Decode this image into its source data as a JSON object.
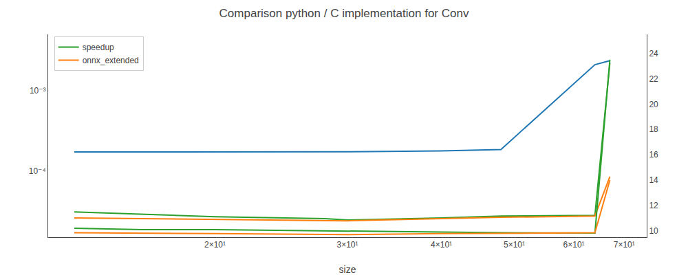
{
  "chart_data": {
    "type": "line",
    "title": "Comparison python / C implementation for Conv",
    "xlabel": "size",
    "x": [
      13,
      16,
      20,
      28,
      30,
      40,
      48,
      64,
      67
    ],
    "series": [
      {
        "color": "#1f77b4",
        "values": [
          0.000172,
          0.000172,
          0.000172,
          0.000172,
          0.000173,
          0.000178,
          0.000185,
          0.0021,
          0.00235
        ]
      },
      {
        "name": "speedup",
        "color": "#2ca02c",
        "values": [
          3.1e-05,
          2.9e-05,
          2.7e-05,
          2.55e-05,
          2.45e-05,
          2.6e-05,
          2.75e-05,
          2.8e-05,
          0.0022
        ]
      },
      {
        "name": "onnx_extended",
        "color": "#ff7f0e",
        "values": [
          2.6e-05,
          2.55e-05,
          2.5e-05,
          2.4e-05,
          2.4e-05,
          2.55e-05,
          2.65e-05,
          2.75e-05,
          8.5e-05
        ]
      },
      {
        "color": "#2ca02c",
        "axis": "y2",
        "values": [
          10.2,
          10.1,
          10.1,
          10.0,
          9.95,
          9.9,
          9.85,
          9.82,
          23.5
        ]
      },
      {
        "color": "#ff7f0e",
        "axis": "y2",
        "values": [
          9.85,
          9.8,
          9.78,
          9.72,
          9.7,
          9.78,
          9.82,
          9.85,
          14.0
        ]
      }
    ],
    "log": true,
    "xlim": [
      12,
      75
    ],
    "xticks": [
      {
        "value": 20,
        "label": "2×10¹"
      },
      {
        "value": 30,
        "label": "3×10¹"
      },
      {
        "value": 40,
        "label": "4×10¹"
      },
      {
        "value": 50,
        "label": "5×10¹"
      },
      {
        "value": 60,
        "label": "6×10¹"
      },
      {
        "value": 70,
        "label": "7×10¹"
      }
    ],
    "ylim": [
      1.5e-05,
      0.005
    ],
    "yticks": [
      {
        "value": 0.0001,
        "label": "10⁻⁴"
      },
      {
        "value": 0.001,
        "label": "10⁻³"
      }
    ],
    "y2lim": [
      9.5,
      25.5
    ],
    "y2ticks": [
      10,
      12,
      14,
      16,
      18,
      20,
      22,
      24
    ],
    "legend": "upper left",
    "grid": false
  }
}
